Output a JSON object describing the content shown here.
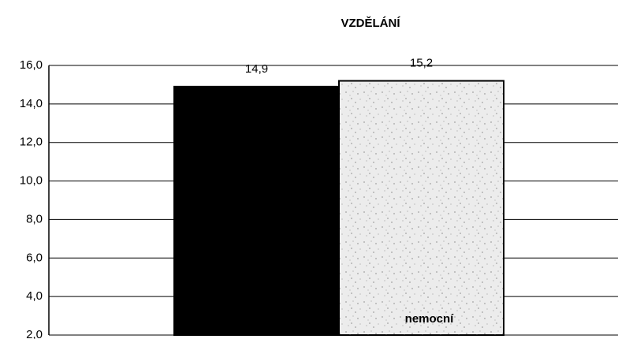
{
  "chart_data": {
    "type": "bar",
    "title": "VZDĚLÁNÍ",
    "categories": [
      null,
      "nemocní"
    ],
    "values": [
      14.9,
      15.2
    ],
    "value_labels": [
      "14,9",
      "15,2"
    ],
    "colors": [
      "#000000",
      "#ececec"
    ],
    "ylim": [
      2,
      16
    ],
    "yticks": [
      {
        "value": 2,
        "label": "2,0"
      },
      {
        "value": 4,
        "label": "4,0"
      },
      {
        "value": 6,
        "label": "6,0"
      },
      {
        "value": 8,
        "label": "8,0"
      },
      {
        "value": 10,
        "label": "10,0"
      },
      {
        "value": 12,
        "label": "12,0"
      },
      {
        "value": 14,
        "label": "14,0"
      },
      {
        "value": 16,
        "label": "16,0"
      }
    ],
    "grid": true
  }
}
